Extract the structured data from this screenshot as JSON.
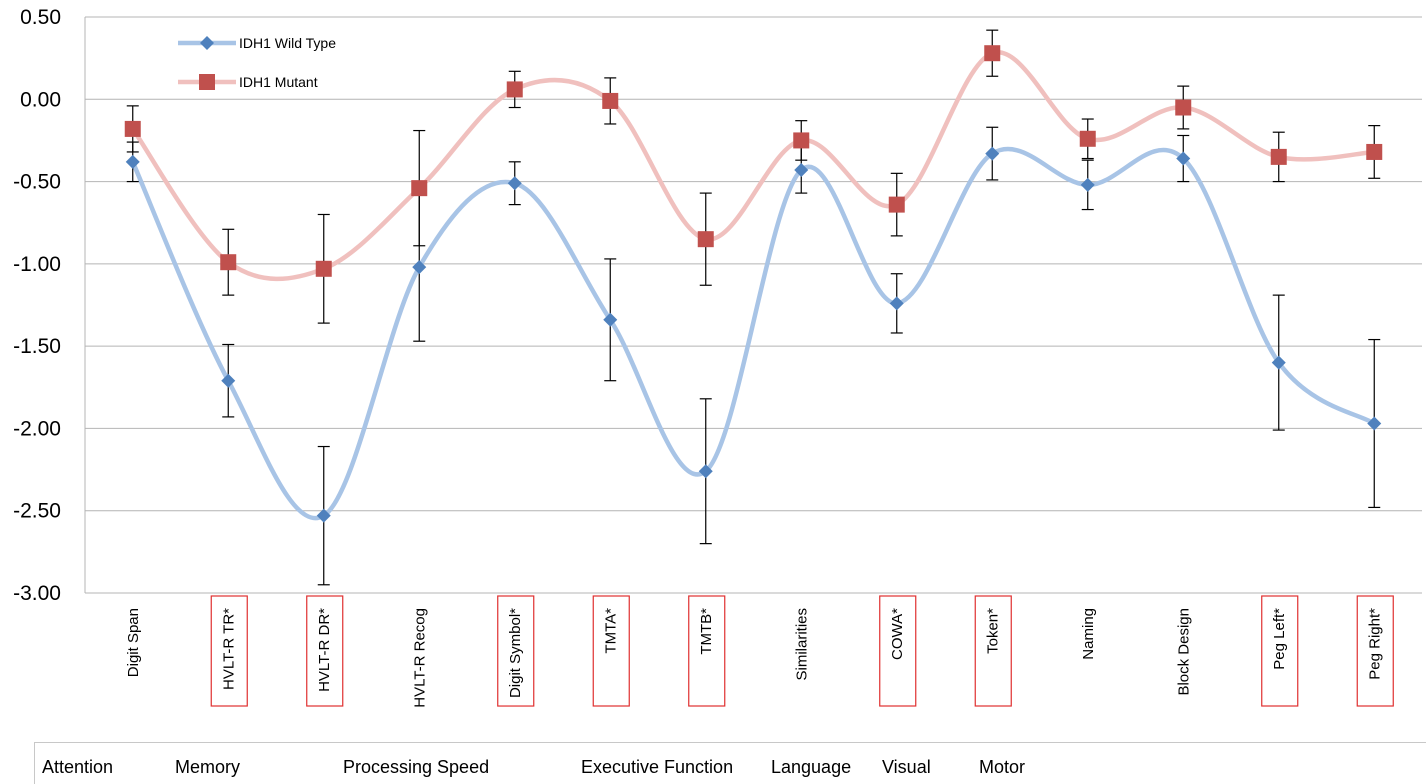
{
  "chart_data": {
    "type": "line",
    "categories": [
      "Digit Span",
      "HVLT-R TR*",
      "HVLT-R DR*",
      "HVLT-R Recog",
      "Digit Symbol*",
      "TMTA*",
      "TMTB*",
      "Similarities",
      "COWA*",
      "Token*",
      "Naming",
      "Block Design",
      "Peg Left*",
      "Peg Right*"
    ],
    "highlighted_categories": [
      "HVLT-R TR*",
      "HVLT-R DR*",
      "Digit Symbol*",
      "TMTA*",
      "TMTB*",
      "COWA*",
      "Token*",
      "Peg Left*",
      "Peg Right*"
    ],
    "series": [
      {
        "name": "IDH1 Wild Type",
        "color": "#4f81bd",
        "line_color": "#a8c4e6",
        "marker": "diamond",
        "values": [
          -0.38,
          -1.71,
          -2.53,
          -1.02,
          -0.51,
          -1.34,
          -2.26,
          -0.43,
          -1.24,
          -0.33,
          -0.52,
          -0.36,
          -1.6,
          -1.97
        ],
        "error": [
          0.12,
          0.22,
          0.42,
          0.45,
          0.13,
          0.37,
          0.44,
          0.14,
          0.18,
          0.16,
          0.15,
          0.14,
          0.41,
          0.51
        ]
      },
      {
        "name": "IDH1 Mutant",
        "color": "#c0504d",
        "line_color": "#f0c0be",
        "marker": "square",
        "values": [
          -0.18,
          -0.99,
          -1.03,
          -0.54,
          0.06,
          -0.01,
          -0.85,
          -0.25,
          -0.64,
          0.28,
          -0.24,
          -0.05,
          -0.35,
          -0.32
        ],
        "error": [
          0.14,
          0.2,
          0.33,
          0.35,
          0.11,
          0.14,
          0.28,
          0.12,
          0.19,
          0.14,
          0.12,
          0.13,
          0.15,
          0.16
        ]
      }
    ],
    "yticks": [
      "0.50",
      "0.00",
      "-0.50",
      "-1.00",
      "-1.50",
      "-2.00",
      "-2.50",
      "-3.00"
    ],
    "ylim": [
      -3.0,
      0.5
    ],
    "grid": true,
    "legend_position": "top-left"
  },
  "domains": [
    "Attention",
    "Memory",
    "Processing Speed",
    "Executive Function",
    "Language",
    "Visual",
    "Motor"
  ]
}
